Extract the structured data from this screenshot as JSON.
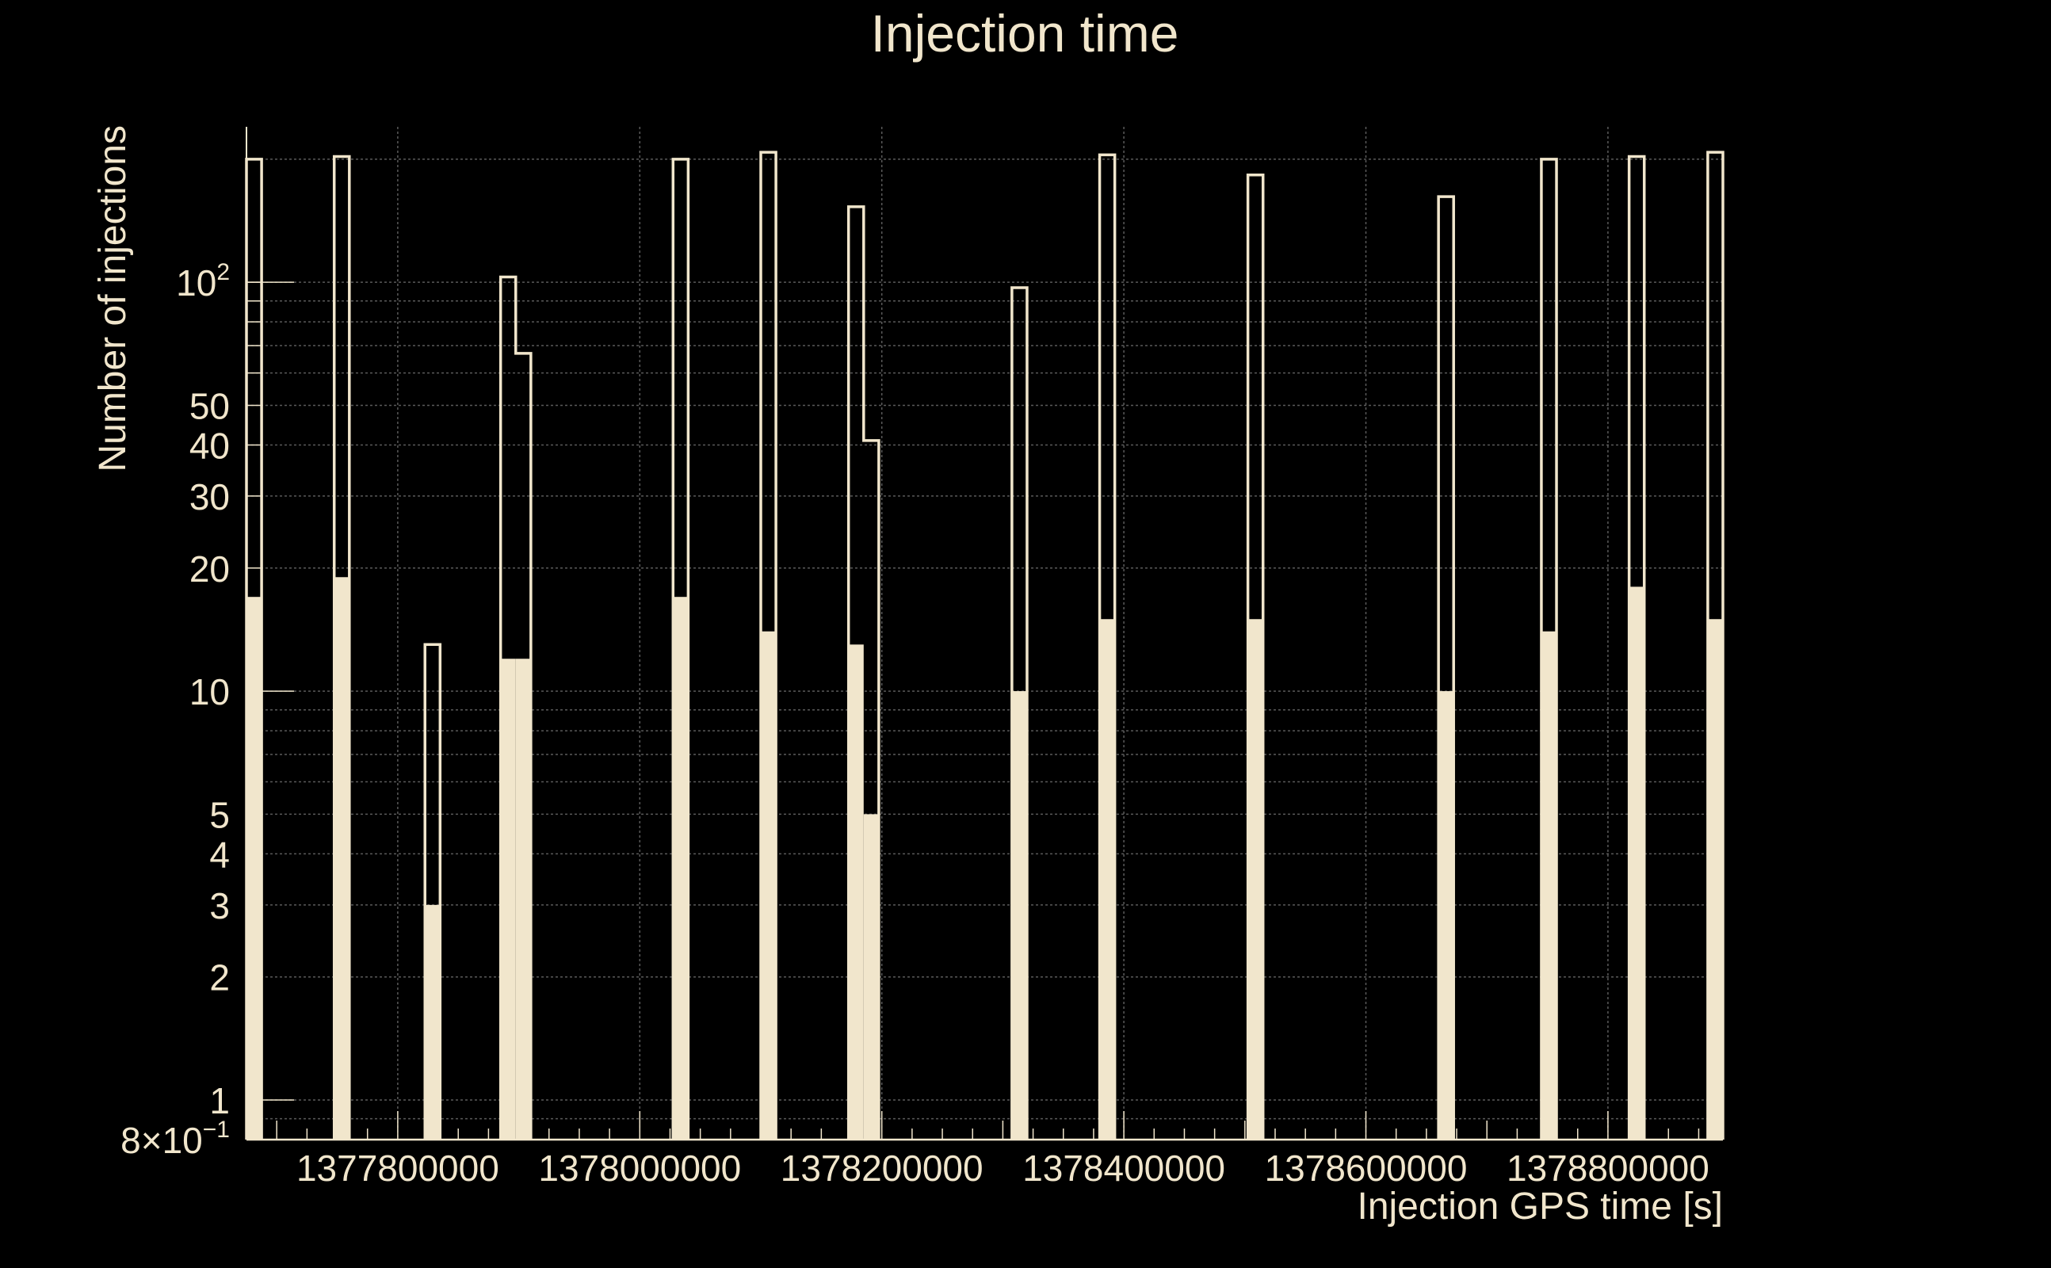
{
  "chart_data": {
    "type": "bar",
    "title": "Injection time",
    "xlabel": "Injection GPS time [s]",
    "ylabel": "Number of injections",
    "yscale": "log",
    "ylim": [
      0.8,
      240
    ],
    "xlim": [
      1377675000,
      1378895000
    ],
    "grid": true,
    "colors": {
      "background": "#000000",
      "foreground": "#f1e6cc",
      "grid": "#5a5a5a"
    },
    "x_ticks": [
      {
        "value": 1377800000,
        "label": "1377800000"
      },
      {
        "value": 1378000000,
        "label": "1378000000"
      },
      {
        "value": 1378200000,
        "label": "1378200000"
      },
      {
        "value": 1378400000,
        "label": "1378400000"
      },
      {
        "value": 1378600000,
        "label": "1378600000"
      },
      {
        "value": 1378800000,
        "label": "1378800000"
      }
    ],
    "y_ticks": [
      {
        "value": 0.8,
        "label": "8×10",
        "exp": "−1"
      },
      {
        "value": 1,
        "label": "1"
      },
      {
        "value": 2,
        "label": "2"
      },
      {
        "value": 3,
        "label": "3"
      },
      {
        "value": 4,
        "label": "4"
      },
      {
        "value": 5,
        "label": "5"
      },
      {
        "value": 10,
        "label": "10"
      },
      {
        "value": 20,
        "label": "20"
      },
      {
        "value": 30,
        "label": "30"
      },
      {
        "value": 40,
        "label": "40"
      },
      {
        "value": 50,
        "label": "50"
      },
      {
        "value": 100,
        "label": "10",
        "exp": "2"
      }
    ],
    "bin_width": 12500,
    "series": [
      {
        "style": "outline",
        "bins": [
          {
            "x": 1377675000,
            "value": 200
          },
          {
            "x": 1377747500,
            "value": 203
          },
          {
            "x": 1377822500,
            "value": 13
          },
          {
            "x": 1377885000,
            "value": 103
          },
          {
            "x": 1377897500,
            "value": 67
          },
          {
            "x": 1378027500,
            "value": 200
          },
          {
            "x": 1378100000,
            "value": 208
          },
          {
            "x": 1378172500,
            "value": 153
          },
          {
            "x": 1378185000,
            "value": 41
          },
          {
            "x": 1378307500,
            "value": 97
          },
          {
            "x": 1378380000,
            "value": 205
          },
          {
            "x": 1378502500,
            "value": 183
          },
          {
            "x": 1378660000,
            "value": 162
          },
          {
            "x": 1378745000,
            "value": 200
          },
          {
            "x": 1378817500,
            "value": 203
          },
          {
            "x": 1378882500,
            "value": 208
          }
        ]
      },
      {
        "style": "filled",
        "bins": [
          {
            "x": 1377675000,
            "value": 17
          },
          {
            "x": 1377747500,
            "value": 19
          },
          {
            "x": 1377822500,
            "value": 3
          },
          {
            "x": 1377885000,
            "value": 12
          },
          {
            "x": 1377897500,
            "value": 12
          },
          {
            "x": 1378027500,
            "value": 17
          },
          {
            "x": 1378100000,
            "value": 14
          },
          {
            "x": 1378172500,
            "value": 13
          },
          {
            "x": 1378185000,
            "value": 5
          },
          {
            "x": 1378307500,
            "value": 10
          },
          {
            "x": 1378380000,
            "value": 15
          },
          {
            "x": 1378502500,
            "value": 15
          },
          {
            "x": 1378660000,
            "value": 10
          },
          {
            "x": 1378745000,
            "value": 14
          },
          {
            "x": 1378817500,
            "value": 18
          },
          {
            "x": 1378882500,
            "value": 15
          }
        ]
      }
    ]
  }
}
